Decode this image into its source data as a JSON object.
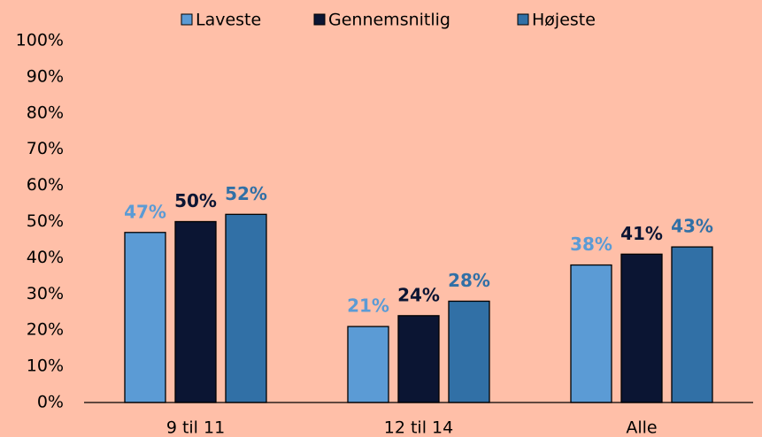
{
  "chart_data": {
    "type": "bar",
    "categories": [
      "9 til 11",
      "12 til 14",
      "Alle"
    ],
    "series": [
      {
        "name": "Laveste",
        "color": "#5b9bd5",
        "values": [
          47,
          21,
          38
        ],
        "value_labels": [
          "47%",
          "21%",
          "38%"
        ]
      },
      {
        "name": "Gennemsnitlig",
        "color": "#0b1533",
        "values": [
          50,
          24,
          41
        ],
        "value_labels": [
          "50%",
          "24%",
          "41%"
        ]
      },
      {
        "name": "Højeste",
        "color": "#3170a6",
        "values": [
          52,
          28,
          43
        ],
        "value_labels": [
          "52%",
          "28%",
          "43%"
        ]
      }
    ],
    "ylim": [
      0,
      100
    ],
    "yticks": [
      {
        "value": 0,
        "label": "0%"
      },
      {
        "value": 10,
        "label": "10%"
      },
      {
        "value": 20,
        "label": "20%"
      },
      {
        "value": 30,
        "label": "30%"
      },
      {
        "value": 40,
        "label": "40%"
      },
      {
        "value": 50,
        "label": "50%"
      },
      {
        "value": 60,
        "label": "60%"
      },
      {
        "value": 70,
        "label": "70%"
      },
      {
        "value": 80,
        "label": "80%"
      },
      {
        "value": 90,
        "label": "90%"
      },
      {
        "value": 100,
        "label": "100%"
      }
    ],
    "grid": false,
    "legend": "top"
  }
}
